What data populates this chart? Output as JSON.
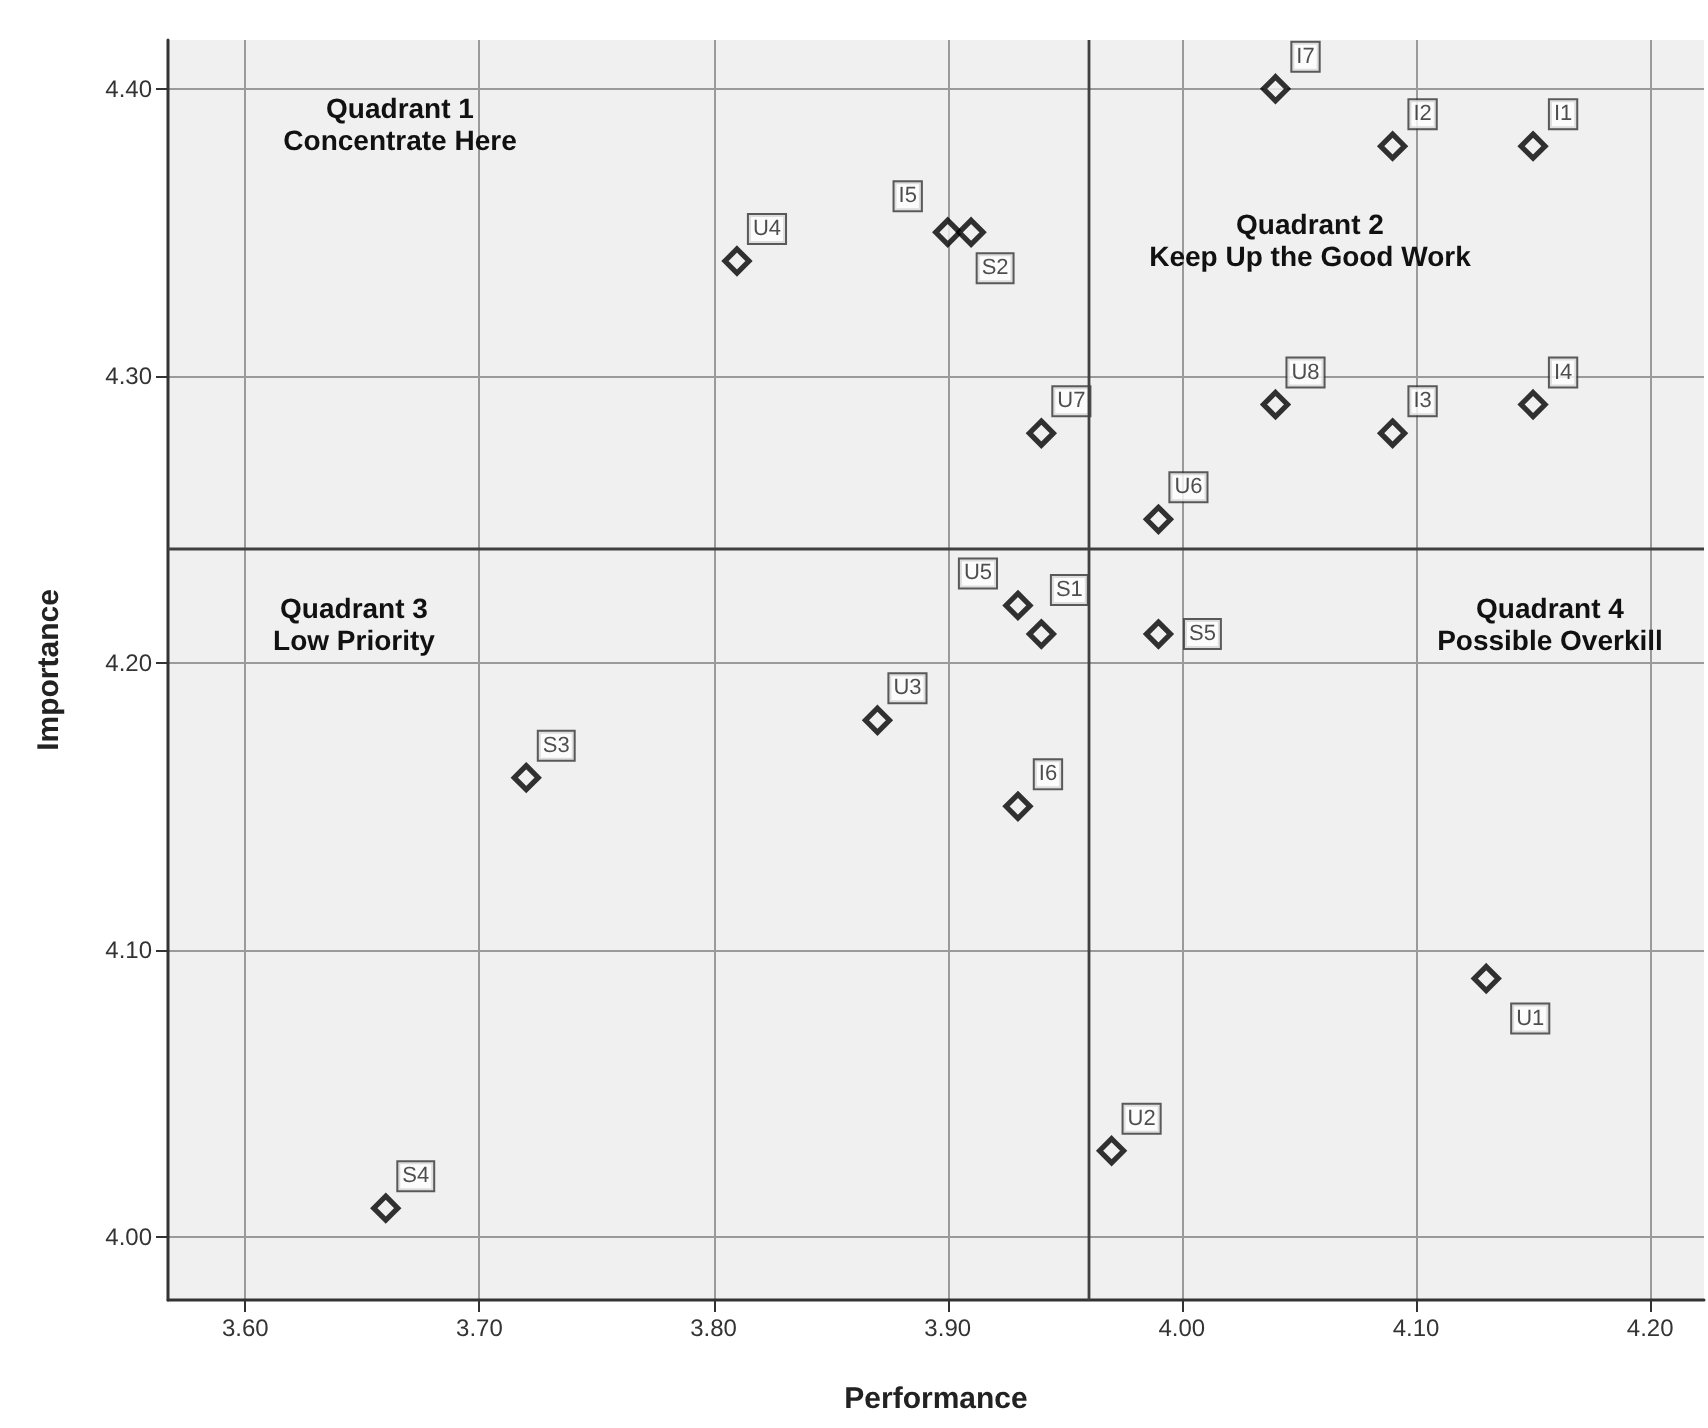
{
  "chart_data": {
    "type": "scatter",
    "xlabel": "Performance",
    "ylabel": "Importance",
    "xlim": [
      3.567,
      4.223
    ],
    "ylim": [
      3.978,
      4.417
    ],
    "xticks": [
      {
        "value": 3.6,
        "label": "3.60"
      },
      {
        "value": 3.7,
        "label": "3.70"
      },
      {
        "value": 3.8,
        "label": "3.80"
      },
      {
        "value": 3.9,
        "label": "3.90"
      },
      {
        "value": 4.0,
        "label": "4.00"
      },
      {
        "value": 4.1,
        "label": "4.10"
      },
      {
        "value": 4.2,
        "label": "4.20"
      }
    ],
    "yticks": [
      {
        "value": 4.0,
        "label": "4.00"
      },
      {
        "value": 4.1,
        "label": "4.10"
      },
      {
        "value": 4.2,
        "label": "4.20"
      },
      {
        "value": 4.3,
        "label": "4.30"
      },
      {
        "value": 4.4,
        "label": "4.40"
      }
    ],
    "grid": true,
    "marker": "diamond",
    "series": [
      {
        "color": "#000000",
        "x": [
          4.04,
          4.09,
          4.15,
          3.81,
          3.9,
          3.91,
          4.04,
          4.09,
          4.15,
          3.94,
          3.99,
          3.93,
          3.94,
          3.99,
          3.87,
          3.72,
          3.93,
          4.13,
          3.97,
          3.66
        ],
        "values": [
          4.4,
          4.38,
          4.38,
          4.34,
          4.35,
          4.35,
          4.29,
          4.28,
          4.29,
          4.28,
          4.25,
          4.22,
          4.21,
          4.21,
          4.18,
          4.16,
          4.15,
          4.09,
          4.03,
          4.01
        ],
        "value_labels": [
          "I7",
          "I2",
          "I1",
          "U4",
          "I5",
          "S2",
          "U8",
          "I3",
          "I4",
          "U7",
          "U6",
          "U5",
          "S1",
          "S5",
          "U3",
          "S3",
          "I6",
          "U1",
          "U2",
          "S4"
        ]
      }
    ],
    "ref_lines": [
      {
        "axis": "x",
        "value": 3.96,
        "color": "#404040"
      },
      {
        "axis": "y",
        "value": 4.24,
        "color": "#404040"
      }
    ],
    "annotations": [
      "Quadrant 1\nConcentrate Here",
      "Quadrant 2\nKeep Up the Good Work",
      "Quadrant 3\nLow Priority",
      "Quadrant 4\nPossible Overkill"
    ]
  }
}
